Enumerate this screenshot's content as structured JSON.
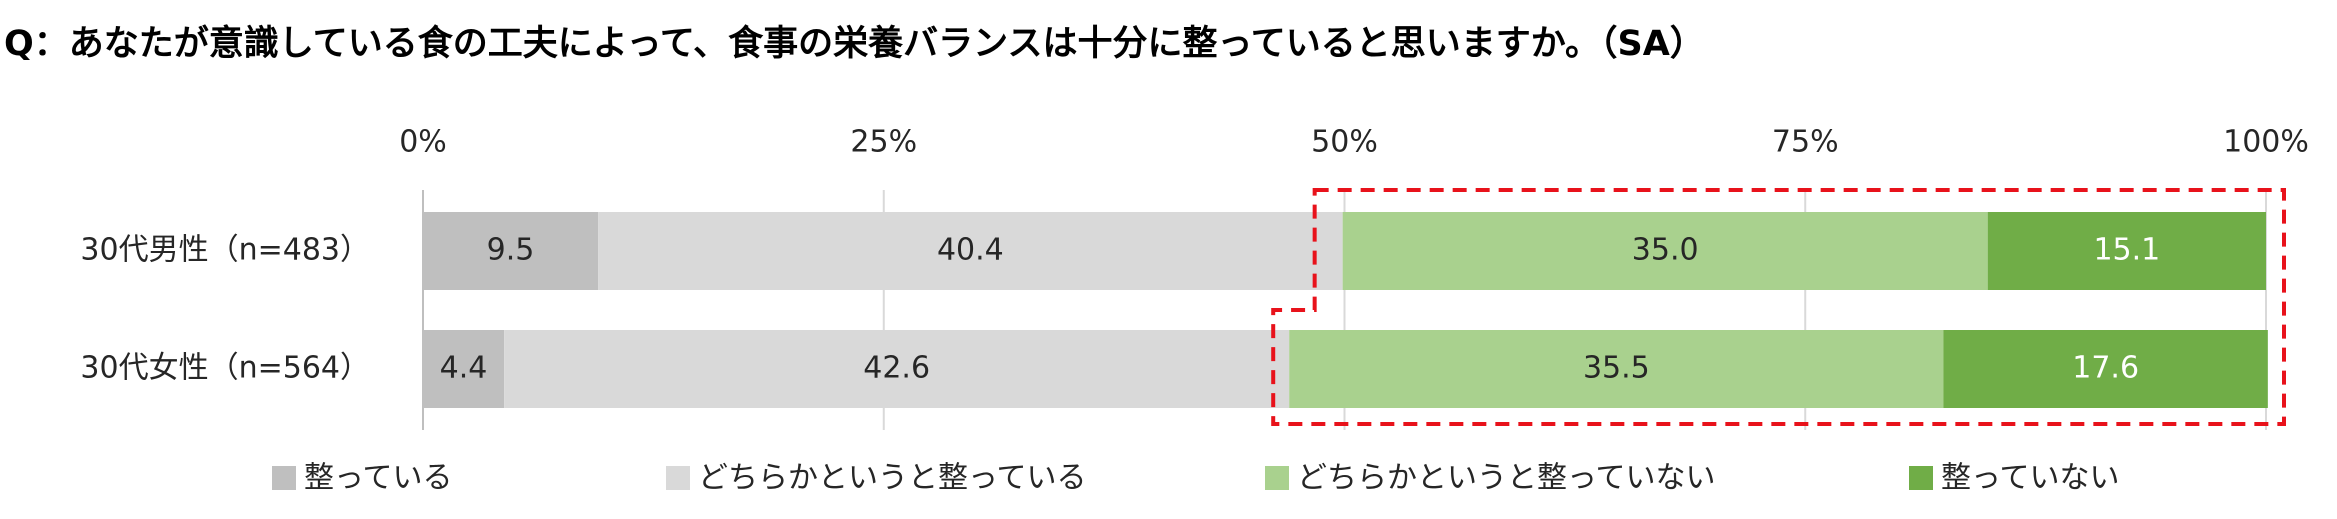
{
  "chart_data": {
    "type": "stacked-bar-horizontal",
    "title": "Q：あなたが意識している食の工夫によって、食事の栄養バランスは十分に整っていると思いますか。（SA）",
    "categories": [
      "30代男性（n=483）",
      "30代女性（n=564）"
    ],
    "series": [
      {
        "name": "整っている",
        "color": "#bfbfbf",
        "values": [
          9.5,
          4.4
        ]
      },
      {
        "name": "どちらかというと整っている",
        "color": "#d9d9d9",
        "values": [
          40.4,
          42.6
        ]
      },
      {
        "name": "どちらかというと整っていない",
        "color": "#a9d18e",
        "values": [
          35.0,
          35.5
        ],
        "value_labels": [
          "35.0",
          "35.5"
        ]
      },
      {
        "name": "整っていない",
        "color": "#70ad47",
        "values": [
          15.1,
          17.6
        ]
      }
    ],
    "xlim": [
      0,
      100
    ],
    "xticks": [
      {
        "value": 0,
        "label": "0%"
      },
      {
        "value": 25,
        "label": "25%"
      },
      {
        "value": 50,
        "label": "50%"
      },
      {
        "value": 75,
        "label": "75%"
      },
      {
        "value": 100,
        "label": "100%"
      }
    ],
    "grid": true,
    "legend": "bottom"
  }
}
